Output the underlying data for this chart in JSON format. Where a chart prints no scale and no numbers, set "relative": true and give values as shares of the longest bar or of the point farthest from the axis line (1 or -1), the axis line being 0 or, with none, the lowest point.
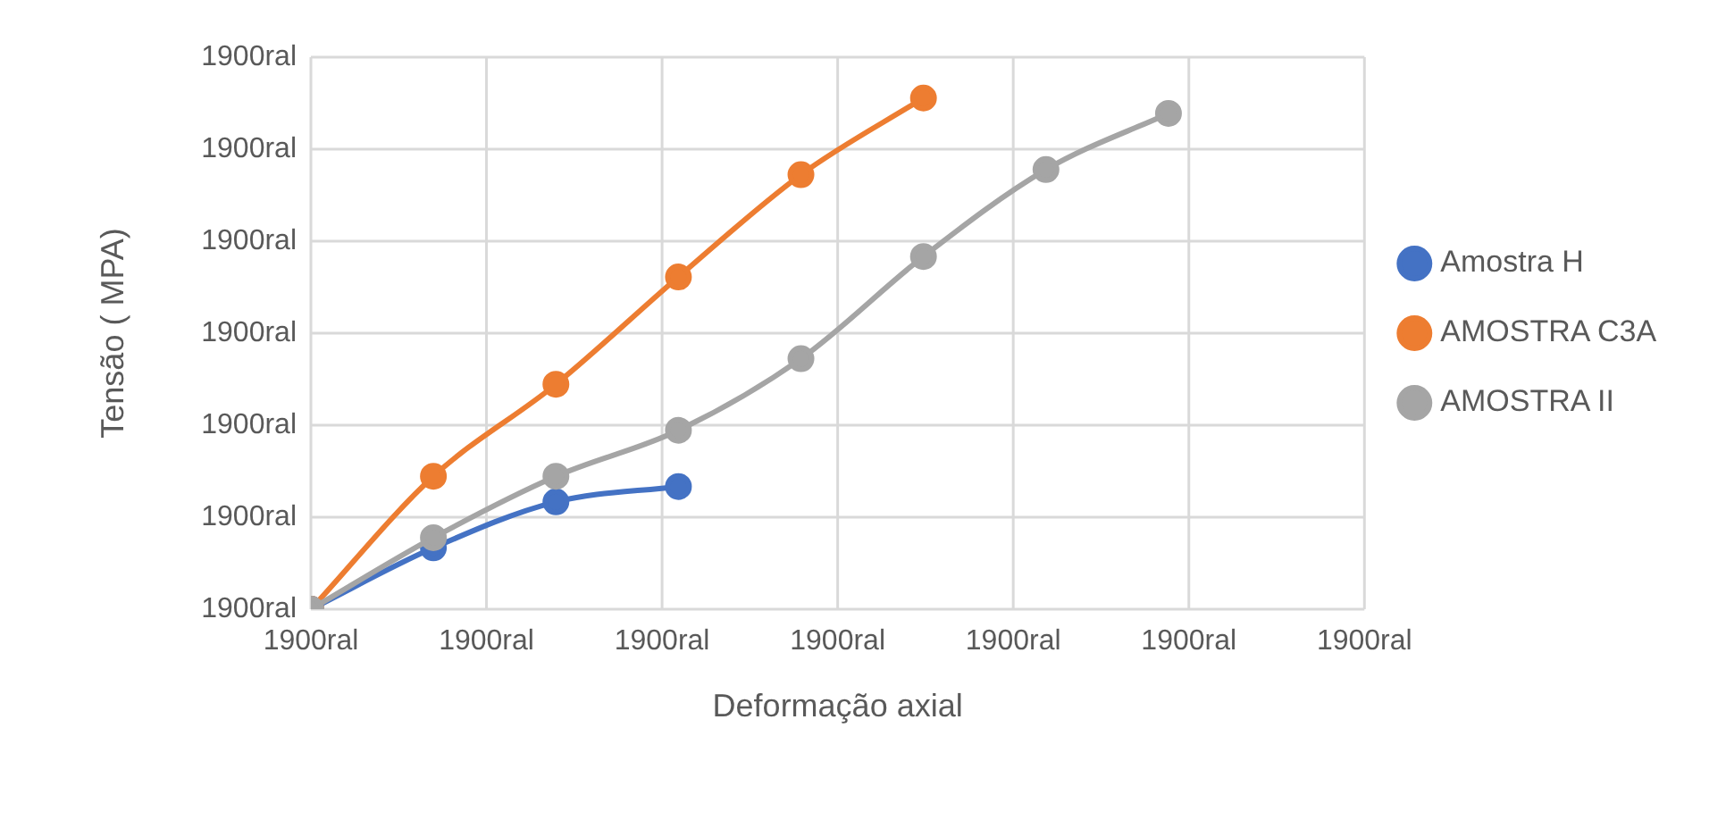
{
  "chart_data": {
    "type": "line",
    "xlabel": "Deformação axial",
    "ylabel": "Tensão ( MPA)",
    "relative": true,
    "categories": [
      null,
      null,
      null,
      null,
      null,
      null,
      null,
      null
    ],
    "annotations": [
      "1900ral",
      "1900ral",
      "1900ral",
      "1900ral",
      "1900ral",
      "1900ral",
      "1900ral",
      "1900ral",
      "1900ral",
      "1900ral",
      "1900ral",
      "1900ral",
      "1900ral",
      "1900ral"
    ],
    "grid": true,
    "legend": "right",
    "marker": "circle",
    "series": [
      {
        "name": "Amostra H",
        "color": "#4472c4",
        "values": [
          0,
          0.12,
          0.21,
          0.24,
          null,
          null,
          null,
          null
        ]
      },
      {
        "name": "AMOSTRA C3A",
        "color": "#ed7d31",
        "values": [
          0,
          0.26,
          0.44,
          0.65,
          0.85,
          1,
          null,
          null
        ]
      },
      {
        "name": "AMOSTRA II",
        "color": "#a5a5a5",
        "values": [
          0,
          0.14,
          0.26,
          0.35,
          0.49,
          0.69,
          0.86,
          0.97
        ]
      }
    ]
  }
}
